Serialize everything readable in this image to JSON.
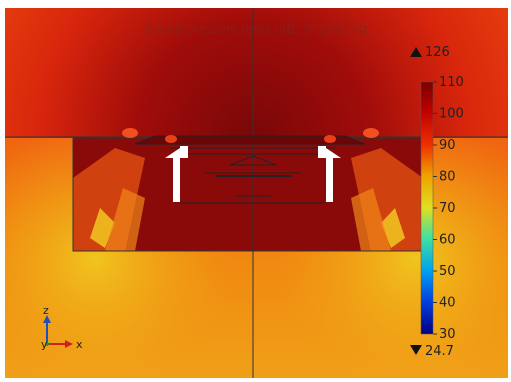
{
  "plot": {
    "title": "Sound pressure level (dB) @ 1000 Hz",
    "max_value": "126",
    "min_value": "24.7",
    "max_marker_label": "126",
    "min_marker_label": "24.7"
  },
  "colorbar": {
    "ticks": [
      "110",
      "100",
      "90",
      "80",
      "70",
      "60",
      "50",
      "40",
      "30"
    ],
    "range": [
      30,
      110
    ],
    "colormap": "rainbow"
  },
  "axes_triad": {
    "z_label": "z",
    "y_label": "y",
    "x_label": "x",
    "colors": {
      "z": "#2050c0",
      "y": "#20a020",
      "x": "#d02020"
    }
  },
  "colors": {
    "deep_red": "#8b0a0a",
    "red": "#c81808",
    "orange_red": "#e63c0c",
    "orange": "#f0780a",
    "yellow": "#e8d020"
  }
}
